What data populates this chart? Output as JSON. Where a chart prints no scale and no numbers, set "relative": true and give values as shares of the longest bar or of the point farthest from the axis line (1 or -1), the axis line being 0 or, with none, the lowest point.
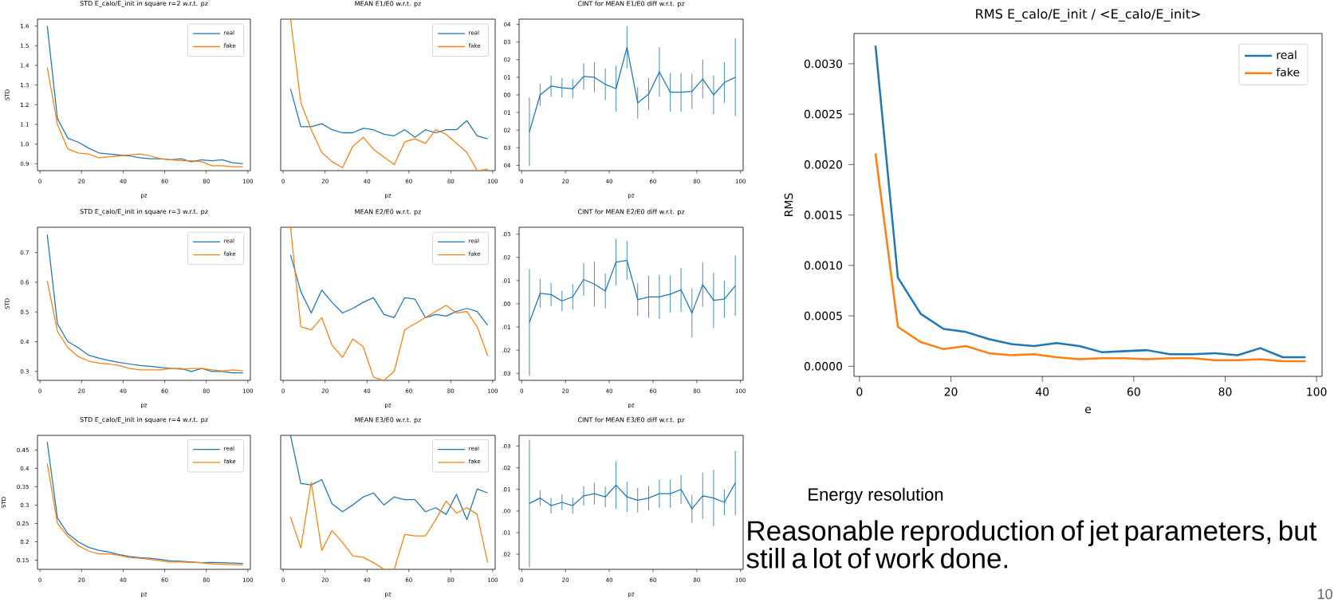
{
  "chart_data": [
    {
      "type": "line",
      "title": "STD E_calo/E_init in square r=2 w.r.t. pz",
      "xlabel": "pz",
      "ylabel": "STD",
      "xlim": [
        -1.2,
        101.2
      ],
      "ylim": [
        0.865,
        1.635
      ],
      "xticks": [
        0,
        20,
        40,
        60,
        80,
        100
      ],
      "yticks": [
        0.9,
        {
          "value": 1,
          "label": "1.0"
        },
        1.1,
        1.2,
        1.3,
        1.4,
        1.5,
        1.6
      ],
      "legend": "top right",
      "x": [
        3.5,
        8.4,
        13.4,
        18.4,
        23.3,
        28.3,
        33.2,
        38.2,
        43.1,
        48.1,
        53,
        58,
        62.9,
        67.9,
        72.8,
        77.8,
        82.7,
        87.7,
        92.6,
        97.6
      ],
      "series": [
        {
          "name": "real",
          "color": "#1f77b4",
          "values": [
            1.6,
            1.13,
            1.03,
            1.01,
            0.98,
            0.955,
            0.95,
            0.945,
            0.94,
            0.93,
            0.925,
            0.925,
            0.92,
            0.925,
            0.91,
            0.92,
            0.915,
            0.92,
            0.905,
            0.9
          ]
        },
        {
          "name": "fake",
          "color": "#ff7f0e",
          "values": [
            1.39,
            1.1,
            0.975,
            0.955,
            0.95,
            0.93,
            0.935,
            0.94,
            0.945,
            0.95,
            0.94,
            0.925,
            0.92,
            0.915,
            0.915,
            0.91,
            0.89,
            0.89,
            0.885,
            0.885
          ]
        }
      ]
    },
    {
      "type": "line",
      "title": "MEAN E1/E0 w.r.t. pz",
      "xlabel": "pz",
      "relative": true,
      "tick_labels": "x",
      "xlim": [
        -1.2,
        101.2
      ],
      "xticks": [
        0,
        20,
        40,
        60,
        80,
        100
      ],
      "legend": "top right",
      "x": [
        3.5,
        8.4,
        13.4,
        18.4,
        23.3,
        28.3,
        33.2,
        38.2,
        43.1,
        48.1,
        53,
        58,
        62.9,
        67.9,
        72.8,
        77.8,
        82.7,
        87.7,
        92.6,
        97.6
      ],
      "series": [
        {
          "name": "real",
          "color": "#1f77b4",
          "values": [
            0.54,
            0.29,
            0.29,
            0.31,
            0.27,
            0.25,
            0.25,
            0.28,
            0.27,
            0.24,
            0.23,
            0.27,
            0.22,
            0.27,
            0.25,
            0.27,
            0.27,
            0.33,
            0.23,
            0.21
          ]
        },
        {
          "name": "fake",
          "color": "#ff7f0e",
          "values": [
            1,
            0.45,
            0.27,
            0.12,
            0.06,
            0.02,
            0.16,
            0.22,
            0.14,
            0.09,
            0.04,
            0.19,
            0.21,
            0.18,
            0.27,
            0.24,
            0.18,
            0.12,
            0,
            0.01
          ]
        }
      ]
    },
    {
      "type": "line",
      "title": "CINT for MEAN E1/E0 diff w.r.t. pz",
      "xlabel": "pz",
      "xlim": [
        -1.2,
        101.2
      ],
      "ylim": [
        -4.3,
        4.3
      ],
      "xticks": [
        0,
        20,
        40,
        60,
        80,
        100
      ],
      "yticks": [
        {
          "value": 4,
          "label": "04"
        },
        {
          "value": 3,
          "label": "03"
        },
        {
          "value": 2,
          "label": "02"
        },
        {
          "value": 1,
          "label": "01"
        },
        {
          "value": 0,
          "label": "00"
        },
        {
          "value": -1,
          "label": "01"
        },
        {
          "value": -2,
          "label": "02"
        },
        {
          "value": -3,
          "label": "03"
        },
        {
          "value": -4,
          "label": "04"
        }
      ],
      "x": [
        3.5,
        8.4,
        13.4,
        18.4,
        23.3,
        28.3,
        33.2,
        38.2,
        43.1,
        48.1,
        53,
        58,
        62.9,
        67.9,
        72.8,
        77.8,
        82.7,
        87.7,
        92.6,
        97.6
      ],
      "series": [
        {
          "color": "#1f77b4",
          "values": [
            -2.1,
            0,
            0.5,
            0.4,
            0.35,
            1.05,
            1,
            0.6,
            0.35,
            2.7,
            -0.45,
            0.05,
            1.3,
            0.15,
            0.15,
            0.2,
            0.9,
            0,
            0.7,
            1
          ],
          "errors": [
            1.95,
            0.63,
            0.6,
            0.55,
            0.55,
            0.75,
            0.85,
            0.9,
            1.3,
            1.2,
            0.9,
            0.9,
            1.4,
            1.1,
            1.1,
            1,
            1.1,
            1.1,
            1.15,
            2.2
          ]
        }
      ]
    },
    {
      "type": "line",
      "title": "STD E_calo/E_init in square r=3 w.r.t. pz",
      "xlabel": "pz",
      "ylabel": "STD",
      "xlim": [
        -1.2,
        101.2
      ],
      "ylim": [
        0.27,
        0.785
      ],
      "xticks": [
        0,
        20,
        40,
        60,
        80,
        100
      ],
      "yticks": [
        0.3,
        0.4,
        0.5,
        0.6,
        0.7
      ],
      "legend": "top right",
      "x": [
        3.5,
        8.4,
        13.4,
        18.4,
        23.3,
        28.3,
        33.2,
        38.2,
        43.1,
        48.1,
        53,
        58,
        62.9,
        67.9,
        72.8,
        77.8,
        82.7,
        87.7,
        92.6,
        97.6
      ],
      "series": [
        {
          "name": "real",
          "color": "#1f77b4",
          "values": [
            0.76,
            0.46,
            0.4,
            0.38,
            0.355,
            0.345,
            0.337,
            0.33,
            0.325,
            0.32,
            0.317,
            0.313,
            0.31,
            0.31,
            0.3,
            0.31,
            0.3,
            0.3,
            0.295,
            0.295
          ]
        },
        {
          "name": "fake",
          "color": "#ff7f0e",
          "values": [
            0.605,
            0.435,
            0.38,
            0.35,
            0.335,
            0.328,
            0.325,
            0.32,
            0.31,
            0.305,
            0.305,
            0.305,
            0.31,
            0.307,
            0.31,
            0.31,
            0.305,
            0.302,
            0.305,
            0.302
          ]
        }
      ]
    },
    {
      "type": "line",
      "title": "MEAN E2/E0 w.r.t. pz",
      "xlabel": "pz",
      "relative": true,
      "tick_labels": "x",
      "xlim": [
        -1.2,
        101.2
      ],
      "xticks": [
        0,
        20,
        40,
        60,
        80,
        100
      ],
      "legend": "top right",
      "x": [
        3.5,
        8.4,
        13.4,
        18.4,
        23.3,
        28.3,
        33.2,
        38.2,
        43.1,
        48.1,
        53,
        58,
        62.9,
        67.9,
        72.8,
        77.8,
        82.7,
        87.7,
        92.6,
        97.6
      ],
      "series": [
        {
          "name": "real",
          "color": "#1f77b4",
          "values": [
            0.82,
            0.58,
            0.44,
            0.59,
            0.51,
            0.44,
            0.47,
            0.51,
            0.54,
            0.43,
            0.41,
            0.54,
            0.53,
            0.41,
            0.43,
            0.42,
            0.45,
            0.47,
            0.45,
            0.36
          ]
        },
        {
          "name": "fake",
          "color": "#ff7f0e",
          "values": [
            1,
            0.35,
            0.33,
            0.41,
            0.23,
            0.15,
            0.27,
            0.22,
            0.02,
            0,
            0.06,
            0.33,
            0.37,
            0.41,
            0.45,
            0.49,
            0.44,
            0.45,
            0.35,
            0.16
          ]
        }
      ]
    },
    {
      "type": "line",
      "title": "CINT for MEAN E2/E0 diff w.r.t. pz",
      "xlabel": "pz",
      "xlim": [
        -1.2,
        101.2
      ],
      "ylim": [
        -0.033,
        0.033
      ],
      "xticks": [
        0,
        20,
        40,
        60,
        80,
        100
      ],
      "yticks": [
        {
          "value": 0.03,
          "label": ".03"
        },
        {
          "value": 0.02,
          "label": ".02"
        },
        {
          "value": 0.01,
          "label": ".01"
        },
        {
          "value": 0,
          "label": ".00"
        },
        {
          "value": -0.01,
          "label": ".01"
        },
        {
          "value": -0.02,
          "label": ".02"
        },
        {
          "value": -0.03,
          "label": ".03"
        }
      ],
      "x": [
        3.5,
        8.4,
        13.4,
        18.4,
        23.3,
        28.3,
        33.2,
        38.2,
        43.1,
        48.1,
        53,
        58,
        62.9,
        67.9,
        72.8,
        77.8,
        82.7,
        87.7,
        92.6,
        97.6
      ],
      "series": [
        {
          "color": "#1f77b4",
          "values": [
            -0.008,
            0.0045,
            0.004,
            0.0012,
            0.003,
            0.0105,
            0.0085,
            0.0055,
            0.018,
            0.0187,
            0.0018,
            0.003,
            0.003,
            0.0042,
            0.006,
            -0.004,
            0.0082,
            0.0015,
            0.002,
            0.0078
          ],
          "errors": [
            0.023,
            0.0062,
            0.005,
            0.0044,
            0.0055,
            0.007,
            0.0097,
            0.0075,
            0.01,
            0.0083,
            0.007,
            0.009,
            0.0095,
            0.008,
            0.0095,
            0.0105,
            0.0095,
            0.012,
            0.008,
            0.013
          ]
        }
      ]
    },
    {
      "type": "line",
      "title": "STD E_calo/E_init in square r=4 w.r.t. pz",
      "xlabel": "pz",
      "ylabel": "STD",
      "xlim": [
        -1.2,
        101.2
      ],
      "ylim": [
        0.125,
        0.49
      ],
      "xticks": [
        0,
        20,
        40,
        60,
        80,
        100
      ],
      "yticks": [
        0.15,
        0.2,
        0.25,
        0.3,
        0.35,
        0.4,
        0.45
      ],
      "legend": "top right",
      "x": [
        3.5,
        8.4,
        13.4,
        18.4,
        23.3,
        28.3,
        33.2,
        38.2,
        43.1,
        48.1,
        53,
        58,
        62.9,
        67.9,
        72.8,
        77.8,
        82.7,
        87.7,
        92.6,
        97.6
      ],
      "series": [
        {
          "name": "real",
          "color": "#1f77b4",
          "values": [
            0.472,
            0.265,
            0.222,
            0.2,
            0.185,
            0.177,
            0.172,
            0.165,
            0.16,
            0.157,
            0.155,
            0.152,
            0.148,
            0.147,
            0.145,
            0.143,
            0.144,
            0.143,
            0.142,
            0.141
          ]
        },
        {
          "name": "fake",
          "color": "#ff7f0e",
          "values": [
            0.413,
            0.25,
            0.215,
            0.19,
            0.175,
            0.167,
            0.167,
            0.163,
            0.157,
            0.155,
            0.152,
            0.148,
            0.145,
            0.145,
            0.144,
            0.143,
            0.14,
            0.139,
            0.138,
            0.137
          ]
        }
      ]
    },
    {
      "type": "line",
      "title": "MEAN E3/E0 w.r.t. pz",
      "xlabel": "pz",
      "relative": true,
      "tick_labels": "x",
      "xlim": [
        -1.2,
        101.2
      ],
      "xticks": [
        0,
        20,
        40,
        60,
        80,
        100
      ],
      "legend": "top right",
      "x": [
        3.5,
        8.4,
        13.4,
        18.4,
        23.3,
        28.3,
        33.2,
        38.2,
        43.1,
        48.1,
        53,
        58,
        62.9,
        67.9,
        72.8,
        77.8,
        82.7,
        87.7,
        92.6,
        97.6
      ],
      "series": [
        {
          "name": "real",
          "color": "#1f77b4",
          "values": [
            1,
            0.64,
            0.63,
            0.67,
            0.49,
            0.43,
            0.48,
            0.54,
            0.57,
            0.48,
            0.54,
            0.52,
            0.52,
            0.43,
            0.46,
            0.41,
            0.56,
            0.37,
            0.6,
            0.57
          ]
        },
        {
          "name": "fake",
          "color": "#ff7f0e",
          "values": [
            0.39,
            0.16,
            0.65,
            0.14,
            0.29,
            0.2,
            0.1,
            0.09,
            0.05,
            0,
            0,
            0.26,
            0.25,
            0.25,
            0.37,
            0.51,
            0.42,
            0.46,
            0.41,
            0.05
          ]
        }
      ]
    },
    {
      "type": "line",
      "title": "CINT for MEAN E3/E0 diff w.r.t. pz",
      "xlabel": "pz",
      "xlim": [
        -1.2,
        101.2
      ],
      "ylim": [
        -0.027,
        0.035
      ],
      "xticks": [
        0,
        20,
        40,
        60,
        80,
        100
      ],
      "yticks": [
        {
          "value": 0.03,
          "label": ".03"
        },
        {
          "value": 0.02,
          "label": ".02"
        },
        {
          "value": 0.01,
          "label": ".01"
        },
        {
          "value": 0,
          "label": ".00"
        },
        {
          "value": -0.01,
          "label": ".01"
        },
        {
          "value": -0.02,
          "label": ".02"
        }
      ],
      "x": [
        3.5,
        8.4,
        13.4,
        18.4,
        23.3,
        28.3,
        33.2,
        38.2,
        43.1,
        48.1,
        53,
        58,
        62.9,
        67.9,
        72.8,
        77.8,
        82.7,
        87.7,
        92.6,
        97.6
      ],
      "series": [
        {
          "color": "#1f77b4",
          "values": [
            0.0035,
            0.006,
            0.0025,
            0.004,
            0.0025,
            0.007,
            0.008,
            0.0065,
            0.012,
            0.0065,
            0.005,
            0.006,
            0.008,
            0.008,
            0.01,
            0.001,
            0.007,
            0.006,
            0.004,
            0.013
          ],
          "errors": [
            0.0295,
            0.0036,
            0.0036,
            0.0036,
            0.0038,
            0.0044,
            0.005,
            0.0048,
            0.011,
            0.007,
            0.0057,
            0.0056,
            0.0065,
            0.0065,
            0.0067,
            0.0065,
            0.0106,
            0.013,
            0.006,
            0.0149
          ]
        }
      ]
    },
    {
      "type": "line",
      "title": "RMS E_calo/E_init / <E_calo/E_init>",
      "xlabel": "e",
      "ylabel": "RMS",
      "xlim": [
        -1.2,
        101.2
      ],
      "ylim": [
        -0.0001,
        0.0033
      ],
      "xticks": [
        0,
        20,
        40,
        60,
        80,
        100
      ],
      "yticks": [
        {
          "value": 0,
          "label": "0.0000"
        },
        {
          "value": 0.0005,
          "label": "0.0005"
        },
        {
          "value": 0.001,
          "label": "0.0010"
        },
        {
          "value": 0.0015,
          "label": "0.0015"
        },
        {
          "value": 0.002,
          "label": "0.0020"
        },
        {
          "value": 0.0025,
          "label": "0.0025"
        },
        {
          "value": 0.003,
          "label": "0.0030"
        }
      ],
      "legend": "top right",
      "annotations": [
        "Energy resolution",
        "Reasonable reproduction of jet parameters, but still a lot of work done.",
        "10"
      ],
      "x": [
        3.5,
        8.4,
        13.4,
        18.4,
        23.3,
        28.3,
        33.2,
        38.2,
        43.1,
        48.1,
        53,
        58,
        62.9,
        67.9,
        72.8,
        77.8,
        82.7,
        87.7,
        92.6,
        97.6
      ],
      "series": [
        {
          "name": "real",
          "color": "#1f77b4",
          "values": [
            0.00318,
            0.00088,
            0.00052,
            0.00037,
            0.00034,
            0.00027,
            0.00022,
            0.0002,
            0.00023,
            0.0002,
            0.00014,
            0.00015,
            0.00016,
            0.00012,
            0.00012,
            0.00013,
            0.00011,
            0.00018,
            9e-05,
            9e-05
          ]
        },
        {
          "name": "fake",
          "color": "#ff7f0e",
          "values": [
            0.00211,
            0.00039,
            0.00024,
            0.00017,
            0.0002,
            0.00013,
            0.00011,
            0.00012,
            9e-05,
            7e-05,
            8e-05,
            8e-05,
            7e-05,
            8e-05,
            8e-05,
            6e-05,
            6e-05,
            7e-05,
            5e-05,
            5e-05
          ]
        }
      ]
    }
  ]
}
